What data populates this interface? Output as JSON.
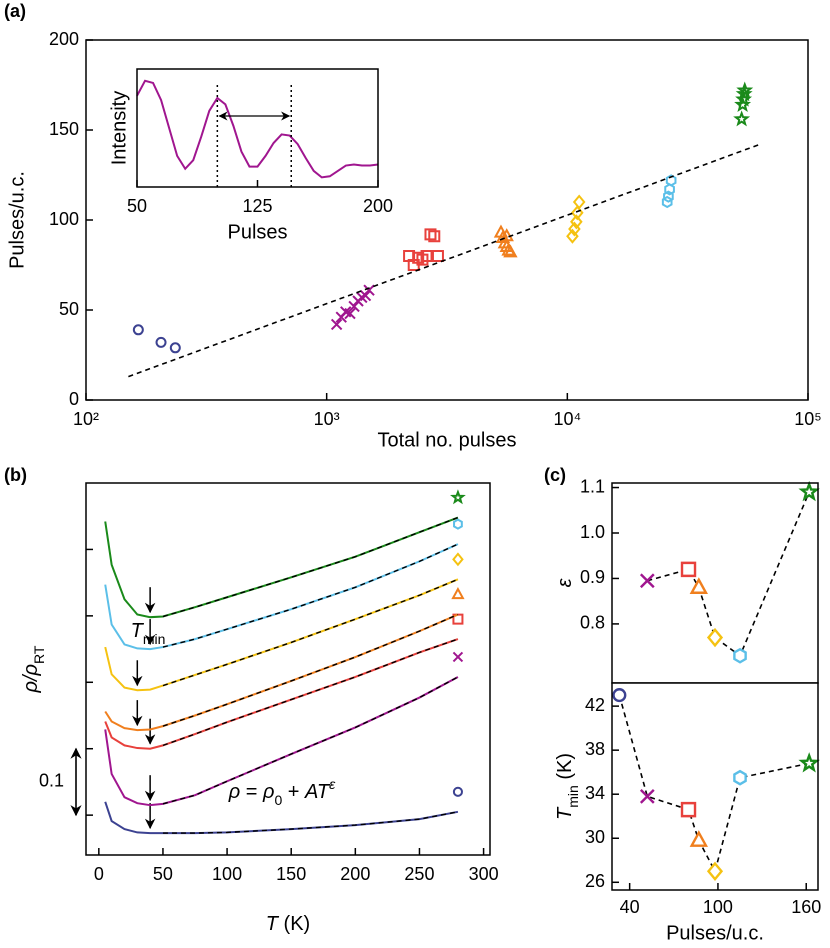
{
  "chart_data": [
    {
      "type": "scatter",
      "panel": "(a)",
      "xlabel": "Total no. pulses",
      "ylabel": "Pulses/u.c.",
      "xlog": true,
      "xlim": [
        100,
        100000
      ],
      "xticks": [
        {
          "value": 100,
          "label": "10²"
        },
        {
          "value": 1000,
          "label": "10³"
        },
        {
          "value": 10000,
          "label": "10⁴"
        },
        {
          "value": 100000,
          "label": "10⁵"
        }
      ],
      "ylim": [
        0,
        200
      ],
      "yticks": [
        0,
        50,
        100,
        150,
        200
      ],
      "series": [
        {
          "color": "#3c4291",
          "marker": "circle",
          "x": [
            165,
            205,
            235
          ],
          "values": [
            39,
            32,
            29
          ]
        },
        {
          "color": "#a0168f",
          "marker": "x",
          "x": [
            1100,
            1150,
            1200,
            1250,
            1300,
            1350,
            1400,
            1450,
            1500
          ],
          "values": [
            42,
            46,
            49,
            48,
            52,
            55,
            57,
            58,
            61
          ]
        },
        {
          "color": "#e8413c",
          "marker": "square",
          "x": [
            2200,
            2300,
            2400,
            2500,
            2600,
            2700,
            2800,
            2900
          ],
          "values": [
            80,
            75,
            79,
            78,
            80,
            92,
            91,
            80
          ]
        },
        {
          "color": "#f07f1e",
          "marker": "triangle",
          "x": [
            5300,
            5400,
            5500,
            5600,
            5700,
            5800,
            5600
          ],
          "values": [
            93,
            90,
            87,
            85,
            83,
            82,
            91
          ]
        },
        {
          "color": "#f5c211",
          "marker": "diamond",
          "x": [
            10500,
            10700,
            10900,
            11000,
            11200
          ],
          "values": [
            91,
            95,
            99,
            104,
            110
          ]
        },
        {
          "color": "#5bbfe8",
          "marker": "hexagon",
          "x": [
            26000,
            26300,
            26600,
            27000
          ],
          "values": [
            110,
            113,
            117,
            122
          ]
        },
        {
          "color": "#1a8a1a",
          "marker": "star",
          "x": [
            53000,
            53500,
            54000,
            54300,
            54600
          ],
          "values": [
            156,
            164,
            167,
            170,
            172
          ]
        }
      ],
      "fit": {
        "x": [
          150,
          63000
        ],
        "values": [
          13,
          142
        ]
      }
    },
    {
      "type": "line",
      "xlabel": "Pulses",
      "ylabel": "Intensity",
      "xlim": [
        50,
        200
      ],
      "xticks": [
        50,
        125,
        200
      ],
      "ylim": [
        -0.05,
        1.05
      ],
      "x": [
        50,
        55,
        60,
        65,
        70,
        75,
        80,
        85,
        90,
        95,
        100,
        105,
        110,
        115,
        120,
        125,
        130,
        135,
        140,
        145,
        150,
        155,
        160,
        165,
        170,
        175,
        180,
        185,
        190,
        195,
        200
      ],
      "series": [
        {
          "color": "#a0168f",
          "values": [
            0.8,
            0.94,
            0.92,
            0.76,
            0.5,
            0.24,
            0.12,
            0.2,
            0.42,
            0.66,
            0.78,
            0.72,
            0.52,
            0.28,
            0.14,
            0.14,
            0.24,
            0.36,
            0.44,
            0.43,
            0.35,
            0.22,
            0.1,
            0.04,
            0.05,
            0.1,
            0.15,
            0.16,
            0.15,
            0.15,
            0.16
          ]
        }
      ],
      "vlines": [
        100,
        146
      ]
    },
    {
      "type": "line",
      "panel": "(b)",
      "xlabel": [
        {
          "text": "T",
          "italic": true
        },
        {
          "text": " (K)"
        }
      ],
      "ylabel": [
        {
          "text": "ρ/ρ",
          "italic": true
        },
        {
          "text": "RT",
          "sub": true
        }
      ],
      "xlim": [
        -10,
        305
      ],
      "xticks": [
        0,
        50,
        100,
        150,
        200,
        250,
        300
      ],
      "ylim": [
        -0.06,
        0.5
      ],
      "yticks": [
        0,
        0.1,
        0.2,
        0.3,
        0.4
      ],
      "x": [
        5,
        10,
        20,
        30,
        40,
        50,
        75,
        100,
        150,
        200,
        250,
        280
      ],
      "fit_from": 50,
      "series": [
        {
          "color": "#3c4291",
          "marker": "circle",
          "values": [
            0.02,
            -0.009,
            -0.021,
            -0.026,
            -0.027,
            -0.027,
            -0.027,
            -0.026,
            -0.021,
            -0.015,
            -0.006,
            0.005
          ]
        },
        {
          "color": "#a0168f",
          "marker": "x",
          "values": [
            0.129,
            0.062,
            0.027,
            0.018,
            0.015,
            0.017,
            0.03,
            0.051,
            0.092,
            0.132,
            0.177,
            0.208
          ]
        },
        {
          "color": "#e8413c",
          "marker": "square",
          "values": [
            0.141,
            0.117,
            0.105,
            0.101,
            0.1,
            0.105,
            0.122,
            0.14,
            0.174,
            0.208,
            0.245,
            0.265
          ]
        },
        {
          "color": "#f07f1e",
          "marker": "triangle",
          "values": [
            0.156,
            0.141,
            0.131,
            0.128,
            0.129,
            0.134,
            0.15,
            0.167,
            0.202,
            0.238,
            0.277,
            0.302
          ]
        },
        {
          "color": "#f5c211",
          "marker": "diamond",
          "values": [
            0.253,
            0.212,
            0.192,
            0.188,
            0.189,
            0.195,
            0.211,
            0.227,
            0.26,
            0.295,
            0.331,
            0.355
          ]
        },
        {
          "color": "#5bbfe8",
          "marker": "hexagon",
          "values": [
            0.347,
            0.287,
            0.257,
            0.251,
            0.25,
            0.253,
            0.265,
            0.28,
            0.31,
            0.343,
            0.382,
            0.408
          ]
        },
        {
          "color": "#1a8a1a",
          "marker": "star",
          "values": [
            0.442,
            0.377,
            0.325,
            0.302,
            0.298,
            0.299,
            0.313,
            0.328,
            0.358,
            0.389,
            0.426,
            0.448
          ]
        }
      ],
      "tmin_label": [
        {
          "text": "T",
          "italic": true
        },
        {
          "text": "min",
          "sub": true
        }
      ],
      "equation": [
        {
          "text": "ρ",
          "italic": true
        },
        {
          "text": " = "
        },
        {
          "text": "ρ",
          "italic": true
        },
        {
          "text": "0",
          "sub": true
        },
        {
          "text": " + "
        },
        {
          "text": "AT",
          "italic": true
        },
        {
          "text": "ε",
          "sup": true,
          "italic": true
        }
      ],
      "scale_bar": 0.1
    },
    {
      "type": "scatter",
      "panel": "(c)",
      "ylabel": [
        {
          "text": "ε",
          "italic": true
        }
      ],
      "xlim": [
        28,
        168
      ],
      "ylim": [
        0.67,
        1.11
      ],
      "yticks": [
        0.8,
        0.9,
        {
          "value": 1.0,
          "label": "1.0"
        },
        1.1
      ],
      "x": [
        33,
        52,
        80,
        87,
        98,
        115,
        162
      ],
      "values": [
        null,
        0.895,
        0.92,
        0.88,
        0.77,
        0.73,
        1.09
      ],
      "colors": [
        "#3c4291",
        "#a0168f",
        "#e8413c",
        "#f07f1e",
        "#f5c211",
        "#5bbfe8",
        "#1a8a1a"
      ],
      "markers": [
        "circle",
        "x",
        "square",
        "triangle",
        "diamond",
        "hexagon",
        "star"
      ],
      "line_style": "dashed"
    },
    {
      "type": "scatter",
      "xlabel": "Pulses/u.c.",
      "ylabel": [
        {
          "text": "T",
          "italic": true
        },
        {
          "text": "min",
          "sub": true
        },
        {
          "text": " (K)"
        }
      ],
      "xlim": [
        28,
        168
      ],
      "xticks": [
        40,
        100,
        160
      ],
      "ylim": [
        25.3,
        44.1
      ],
      "yticks": [
        26,
        30,
        34,
        38,
        42
      ],
      "x": [
        33,
        52,
        80,
        87,
        98,
        115,
        162
      ],
      "values": [
        43.0,
        33.8,
        32.6,
        29.8,
        27.0,
        35.5,
        36.8
      ],
      "colors": [
        "#3c4291",
        "#a0168f",
        "#e8413c",
        "#f07f1e",
        "#f5c211",
        "#5bbfe8",
        "#1a8a1a"
      ],
      "markers": [
        "circle",
        "x",
        "square",
        "triangle",
        "diamond",
        "hexagon",
        "star"
      ],
      "line_style": "dashed"
    }
  ]
}
